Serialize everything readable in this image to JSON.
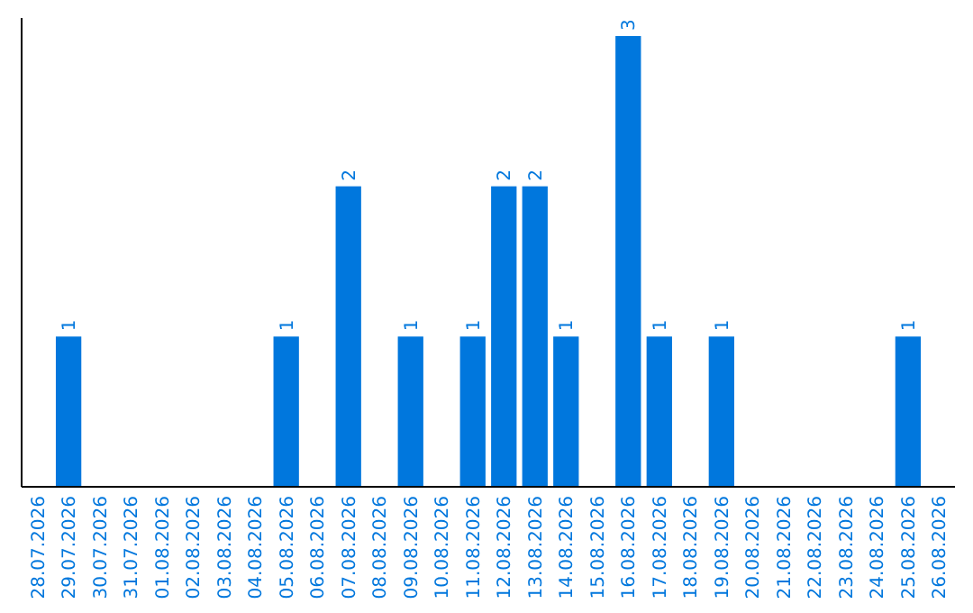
{
  "chart_data": {
    "type": "bar",
    "categories": [
      "28.07.2026",
      "29.07.2026",
      "30.07.2026",
      "31.07.2026",
      "01.08.2026",
      "02.08.2026",
      "03.08.2026",
      "04.08.2026",
      "05.08.2026",
      "06.08.2026",
      "07.08.2026",
      "08.08.2026",
      "09.08.2026",
      "10.08.2026",
      "11.08.2026",
      "12.08.2026",
      "13.08.2026",
      "14.08.2026",
      "15.08.2026",
      "16.08.2026",
      "17.08.2026",
      "18.08.2026",
      "19.08.2026",
      "20.08.2026",
      "21.08.2026",
      "22.08.2026",
      "23.08.2026",
      "24.08.2026",
      "25.08.2026",
      "26.08.2026"
    ],
    "values": [
      0,
      1,
      0,
      0,
      0,
      0,
      0,
      0,
      1,
      0,
      2,
      0,
      1,
      0,
      1,
      2,
      2,
      1,
      0,
      3,
      1,
      0,
      1,
      0,
      0,
      0,
      0,
      0,
      1,
      0
    ],
    "value_labels": [
      null,
      "1",
      null,
      null,
      null,
      null,
      null,
      null,
      "1",
      null,
      "2",
      null,
      "1",
      null,
      "1",
      "2",
      "2",
      "1",
      null,
      "3",
      "1",
      null,
      "1",
      null,
      null,
      null,
      null,
      null,
      "1",
      null
    ],
    "color": "#0077dd"
  }
}
